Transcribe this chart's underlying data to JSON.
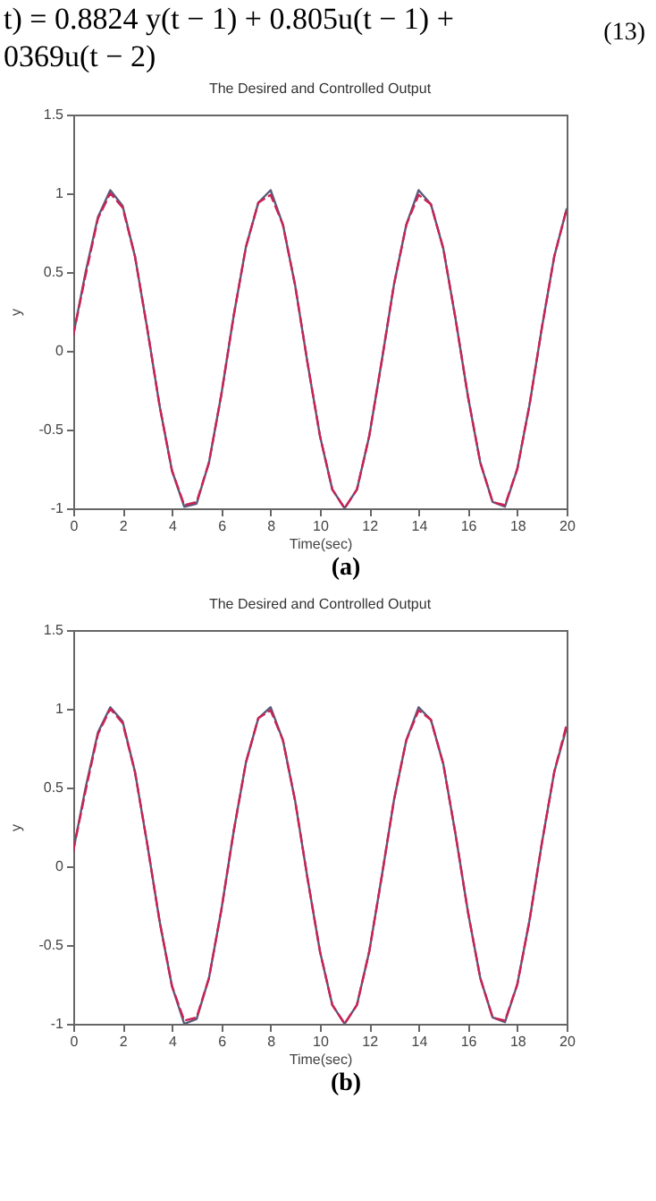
{
  "chart_data": [
    {
      "type": "line",
      "title": "The Desired and Controlled Output",
      "xlabel": "Time(sec)",
      "ylabel": "y",
      "annotations": [
        "t) = 0.8824 y(t − 1) + 0.805u(t − 1) +",
        "0369u(t − 2)",
        "(13)",
        "(a)"
      ],
      "x": [
        0,
        0.5,
        1,
        1.5,
        2,
        2.5,
        3,
        3.5,
        4,
        4.5,
        5,
        5.5,
        6,
        6.5,
        7,
        7.5,
        8,
        8.5,
        9,
        9.5,
        10,
        10.5,
        11,
        11.5,
        12,
        12.5,
        13,
        13.5,
        14,
        14.5,
        15,
        15.5,
        16,
        16.5,
        17,
        17.5,
        18,
        18.5,
        19,
        19.5,
        20
      ],
      "series": [
        {
          "color": "#5a5a7a",
          "line_style": "solid",
          "values": [
            0.1,
            0.5,
            0.85,
            1.02,
            0.92,
            0.6,
            0.14,
            -0.35,
            -0.76,
            -0.99,
            -0.97,
            -0.71,
            -0.28,
            0.22,
            0.66,
            0.94,
            1.02,
            0.8,
            0.41,
            -0.08,
            -0.54,
            -0.88,
            -1.0,
            -0.88,
            -0.54,
            -0.07,
            0.42,
            0.8,
            1.02,
            0.93,
            0.65,
            0.2,
            -0.29,
            -0.71,
            -0.96,
            -0.99,
            -0.75,
            -0.34,
            0.15,
            0.6,
            0.9
          ]
        },
        {
          "color": "#cc2255",
          "line_style": "dashed",
          "values": [
            0.1,
            0.48,
            0.84,
            1.0,
            0.91,
            0.6,
            0.14,
            -0.35,
            -0.76,
            -0.98,
            -0.96,
            -0.71,
            -0.28,
            0.22,
            0.66,
            0.94,
            0.99,
            0.8,
            0.41,
            -0.08,
            -0.54,
            -0.88,
            -1.0,
            -0.88,
            -0.54,
            -0.07,
            0.42,
            0.8,
            0.99,
            0.93,
            0.65,
            0.2,
            -0.29,
            -0.71,
            -0.96,
            -0.98,
            -0.75,
            -0.34,
            0.15,
            0.6,
            0.9
          ]
        }
      ],
      "xlim": [
        0,
        20
      ],
      "xticks": [
        0,
        2,
        4,
        6,
        8,
        10,
        12,
        14,
        16,
        18,
        20
      ],
      "ylim": [
        -1,
        1.5
      ],
      "yticks": [
        -1,
        -0.5,
        0,
        0.5,
        1,
        1.5
      ],
      "grid": false,
      "marker": "none"
    },
    {
      "type": "line",
      "title": "The Desired and Controlled Output",
      "xlabel": "Time(sec)",
      "ylabel": "y",
      "annotations": [
        "(b)"
      ],
      "x": [
        0,
        0.5,
        1,
        1.5,
        2,
        2.5,
        3,
        3.5,
        4,
        4.5,
        5,
        5.5,
        6,
        6.5,
        7,
        7.5,
        8,
        8.5,
        9,
        9.5,
        10,
        10.5,
        11,
        11.5,
        12,
        12.5,
        13,
        13.5,
        14,
        14.5,
        15,
        15.5,
        16,
        16.5,
        17,
        17.5,
        18,
        18.5,
        19,
        19.5,
        20
      ],
      "series": [
        {
          "color": "#5a5a7a",
          "line_style": "solid",
          "values": [
            0.1,
            0.5,
            0.85,
            1.01,
            0.92,
            0.6,
            0.14,
            -0.35,
            -0.76,
            -1.0,
            -0.97,
            -0.71,
            -0.28,
            0.22,
            0.66,
            0.94,
            1.01,
            0.8,
            0.41,
            -0.08,
            -0.54,
            -0.88,
            -1.0,
            -0.88,
            -0.54,
            -0.07,
            0.42,
            0.8,
            1.01,
            0.93,
            0.65,
            0.2,
            -0.29,
            -0.71,
            -0.96,
            -0.99,
            -0.75,
            -0.34,
            0.15,
            0.6,
            0.88
          ]
        },
        {
          "color": "#cc2255",
          "line_style": "dashed",
          "values": [
            0.1,
            0.48,
            0.84,
            1.0,
            0.91,
            0.6,
            0.14,
            -0.35,
            -0.76,
            -0.98,
            -0.96,
            -0.71,
            -0.28,
            0.22,
            0.66,
            0.94,
            0.99,
            0.8,
            0.41,
            -0.08,
            -0.54,
            -0.88,
            -1.0,
            -0.88,
            -0.54,
            -0.07,
            0.42,
            0.8,
            0.99,
            0.93,
            0.65,
            0.2,
            -0.29,
            -0.71,
            -0.96,
            -0.98,
            -0.75,
            -0.34,
            0.15,
            0.6,
            0.9
          ]
        }
      ],
      "xlim": [
        0,
        20
      ],
      "xticks": [
        0,
        2,
        4,
        6,
        8,
        10,
        12,
        14,
        16,
        18,
        20
      ],
      "ylim": [
        -1,
        1.5
      ],
      "yticks": [
        -1,
        -0.5,
        0,
        0.5,
        1,
        1.5
      ],
      "grid": false,
      "marker": "none"
    }
  ]
}
